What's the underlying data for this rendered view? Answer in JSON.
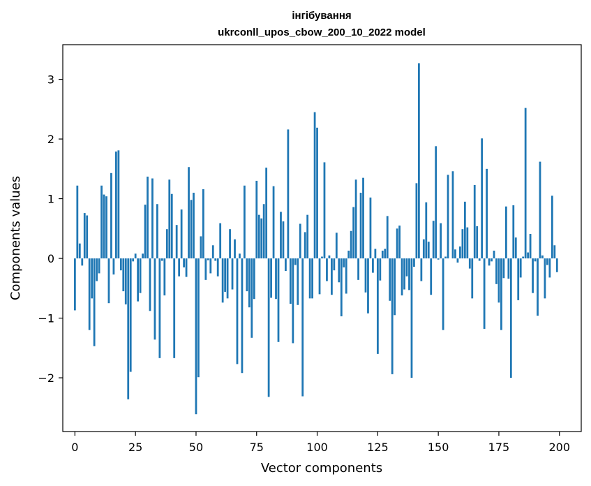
{
  "chart_data": {
    "type": "bar",
    "title": "інгібування",
    "subtitle": "ukrconll_upos_cbow_200_10_2022 model",
    "xlabel": "Vector components",
    "ylabel": "Components values",
    "xlim": [
      -5,
      209
    ],
    "ylim": [
      -2.9,
      3.58
    ],
    "xticks": [
      0,
      25,
      50,
      75,
      100,
      125,
      150,
      175,
      200
    ],
    "yticks": [
      -2,
      -1,
      0,
      1,
      2,
      3
    ],
    "xtick_labels": [
      "0",
      "25",
      "50",
      "75",
      "100",
      "125",
      "150",
      "175",
      "200"
    ],
    "ytick_labels": [
      "−2",
      "−1",
      "0",
      "1",
      "2",
      "3"
    ],
    "bar_color": "#1f77b4",
    "grid": false,
    "x": [
      0,
      1,
      2,
      3,
      4,
      5,
      6,
      7,
      8,
      9,
      10,
      11,
      12,
      13,
      14,
      15,
      16,
      17,
      18,
      19,
      20,
      21,
      22,
      23,
      24,
      25,
      26,
      27,
      28,
      29,
      30,
      31,
      32,
      33,
      34,
      35,
      36,
      37,
      38,
      39,
      40,
      41,
      42,
      43,
      44,
      45,
      46,
      47,
      48,
      49,
      50,
      51,
      52,
      53,
      54,
      55,
      56,
      57,
      58,
      59,
      60,
      61,
      62,
      63,
      64,
      65,
      66,
      67,
      68,
      69,
      70,
      71,
      72,
      73,
      74,
      75,
      76,
      77,
      78,
      79,
      80,
      81,
      82,
      83,
      84,
      85,
      86,
      87,
      88,
      89,
      90,
      91,
      92,
      93,
      94,
      95,
      96,
      97,
      98,
      99,
      100,
      101,
      102,
      103,
      104,
      105,
      106,
      107,
      108,
      109,
      110,
      111,
      112,
      113,
      114,
      115,
      116,
      117,
      118,
      119,
      120,
      121,
      122,
      123,
      124,
      125,
      126,
      127,
      128,
      129,
      130,
      131,
      132,
      133,
      134,
      135,
      136,
      137,
      138,
      139,
      140,
      141,
      142,
      143,
      144,
      145,
      146,
      147,
      148,
      149,
      150,
      151,
      152,
      153,
      154,
      155,
      156,
      157,
      158,
      159,
      160,
      161,
      162,
      163,
      164,
      165,
      166,
      167,
      168,
      169,
      170,
      171,
      172,
      173,
      174,
      175,
      176,
      177,
      178,
      179,
      180,
      181,
      182,
      183,
      184,
      185,
      186,
      187,
      188,
      189,
      190,
      191,
      192,
      193,
      194,
      195,
      196,
      197,
      198,
      199
    ],
    "values": [
      -0.87,
      1.22,
      0.25,
      -0.12,
      0.76,
      0.72,
      -1.2,
      -0.67,
      -1.47,
      -0.38,
      -0.25,
      1.22,
      1.07,
      1.04,
      -0.75,
      1.43,
      -0.27,
      1.79,
      1.81,
      -0.2,
      -0.55,
      -0.77,
      -2.36,
      -1.9,
      -0.05,
      0.08,
      -0.72,
      -0.58,
      0.08,
      0.9,
      1.37,
      -0.88,
      1.34,
      -1.36,
      0.91,
      -1.67,
      -0.04,
      -0.62,
      0.49,
      1.32,
      1.08,
      -1.67,
      0.56,
      -0.3,
      0.82,
      -0.15,
      -0.31,
      1.53,
      0.98,
      1.1,
      -2.61,
      -1.99,
      0.37,
      1.16,
      -0.36,
      -0.03,
      -0.25,
      0.22,
      -0.04,
      -0.3,
      0.59,
      -0.74,
      -0.56,
      -0.67,
      0.49,
      -0.52,
      0.32,
      -1.77,
      0.08,
      -1.92,
      1.22,
      -0.55,
      -0.82,
      -1.33,
      -0.68,
      1.3,
      0.73,
      0.67,
      0.91,
      1.52,
      -2.32,
      -0.66,
      1.21,
      -0.68,
      -1.4,
      0.78,
      0.62,
      -0.21,
      2.16,
      -0.76,
      -1.42,
      -0.11,
      -0.78,
      0.58,
      -2.31,
      0.44,
      0.73,
      -0.67,
      -0.67,
      2.45,
      2.19,
      -0.6,
      0.03,
      1.61,
      -0.38,
      0.05,
      -0.61,
      -0.2,
      0.43,
      -0.4,
      -0.97,
      -0.15,
      -0.59,
      0.13,
      0.46,
      0.86,
      1.32,
      -0.36,
      1.1,
      1.35,
      -0.57,
      -0.92,
      1.02,
      -0.24,
      0.16,
      -1.6,
      -0.37,
      0.13,
      0.16,
      0.71,
      -0.71,
      -1.94,
      -0.95,
      0.5,
      0.55,
      -0.62,
      -0.52,
      -0.3,
      -0.53,
      -2.0,
      -0.14,
      1.26,
      3.27,
      -0.38,
      0.32,
      0.94,
      0.28,
      -0.61,
      0.63,
      1.88,
      -0.02,
      0.59,
      -1.2,
      0.03,
      1.4,
      0.0,
      1.46,
      0.15,
      -0.07,
      0.2,
      0.49,
      0.95,
      0.52,
      -0.17,
      -0.67,
      1.23,
      0.54,
      -0.04,
      2.01,
      -1.18,
      1.5,
      -0.12,
      -0.05,
      0.13,
      -0.43,
      -0.74,
      -1.2,
      -0.33,
      0.87,
      -0.34,
      -2.0,
      0.89,
      0.35,
      -0.7,
      -0.32,
      0.03,
      2.52,
      0.1,
      0.41,
      -0.58,
      -0.05,
      -0.96,
      1.62,
      0.05,
      -0.67,
      -0.11,
      -0.32,
      1.05,
      0.22,
      -0.23
    ]
  }
}
